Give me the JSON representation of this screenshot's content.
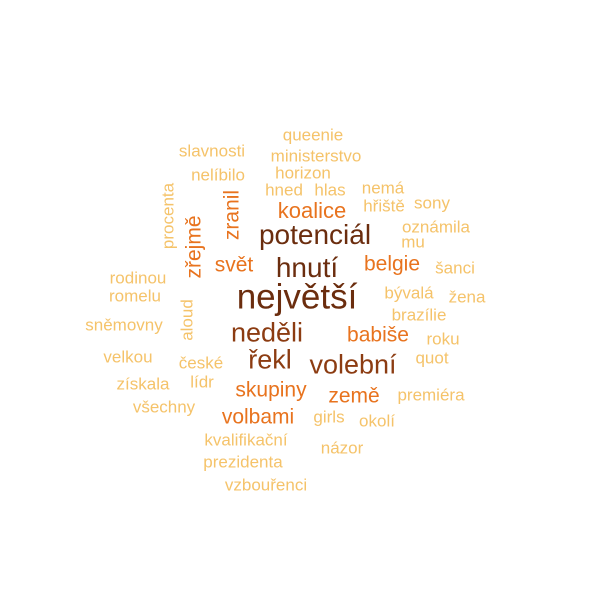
{
  "colors": {
    "dark": "#6b2d0e",
    "brown": "#8c3c12",
    "orange": "#e8731e",
    "light": "#f5c36a"
  },
  "words": [
    {
      "text": "největší",
      "weight": 1.0,
      "tone": "dark"
    },
    {
      "text": "potenciál",
      "weight": 0.85,
      "tone": "dark"
    },
    {
      "text": "hnutí",
      "weight": 0.8,
      "tone": "dark"
    },
    {
      "text": "neděli",
      "weight": 0.75,
      "tone": "brown"
    },
    {
      "text": "řekl",
      "weight": 0.75,
      "tone": "brown"
    },
    {
      "text": "volební",
      "weight": 0.75,
      "tone": "brown"
    },
    {
      "text": "koalice",
      "weight": 0.55,
      "tone": "orange"
    },
    {
      "text": "belgie",
      "weight": 0.5,
      "tone": "orange"
    },
    {
      "text": "svět",
      "weight": 0.5,
      "tone": "orange"
    },
    {
      "text": "zranil",
      "weight": 0.5,
      "tone": "orange"
    },
    {
      "text": "zřejmě",
      "weight": 0.5,
      "tone": "orange"
    },
    {
      "text": "babiše",
      "weight": 0.5,
      "tone": "orange"
    },
    {
      "text": "země",
      "weight": 0.5,
      "tone": "orange"
    },
    {
      "text": "skupiny",
      "weight": 0.5,
      "tone": "orange"
    },
    {
      "text": "volbami",
      "weight": 0.5,
      "tone": "orange"
    },
    {
      "text": "queenie",
      "weight": 0.3,
      "tone": "light"
    },
    {
      "text": "slavnosti",
      "weight": 0.3,
      "tone": "light"
    },
    {
      "text": "ministerstvo",
      "weight": 0.3,
      "tone": "light"
    },
    {
      "text": "nelíbilo",
      "weight": 0.3,
      "tone": "light"
    },
    {
      "text": "horizon",
      "weight": 0.3,
      "tone": "light"
    },
    {
      "text": "hned",
      "weight": 0.3,
      "tone": "light"
    },
    {
      "text": "hlas",
      "weight": 0.3,
      "tone": "light"
    },
    {
      "text": "nemá",
      "weight": 0.3,
      "tone": "light"
    },
    {
      "text": "hřiště",
      "weight": 0.3,
      "tone": "light"
    },
    {
      "text": "sony",
      "weight": 0.3,
      "tone": "light"
    },
    {
      "text": "procenta",
      "weight": 0.3,
      "tone": "light"
    },
    {
      "text": "oznámila",
      "weight": 0.3,
      "tone": "light"
    },
    {
      "text": "mu",
      "weight": 0.3,
      "tone": "light"
    },
    {
      "text": "šanci",
      "weight": 0.3,
      "tone": "light"
    },
    {
      "text": "rodinou",
      "weight": 0.3,
      "tone": "light"
    },
    {
      "text": "romelu",
      "weight": 0.3,
      "tone": "light"
    },
    {
      "text": "bývalá",
      "weight": 0.3,
      "tone": "light"
    },
    {
      "text": "žena",
      "weight": 0.3,
      "tone": "light"
    },
    {
      "text": "brazílie",
      "weight": 0.3,
      "tone": "light"
    },
    {
      "text": "aloud",
      "weight": 0.3,
      "tone": "light"
    },
    {
      "text": "sněmovny",
      "weight": 0.3,
      "tone": "light"
    },
    {
      "text": "roku",
      "weight": 0.3,
      "tone": "light"
    },
    {
      "text": "quot",
      "weight": 0.3,
      "tone": "light"
    },
    {
      "text": "velkou",
      "weight": 0.3,
      "tone": "light"
    },
    {
      "text": "české",
      "weight": 0.3,
      "tone": "light"
    },
    {
      "text": "získala",
      "weight": 0.3,
      "tone": "light"
    },
    {
      "text": "lídr",
      "weight": 0.3,
      "tone": "light"
    },
    {
      "text": "premiéra",
      "weight": 0.3,
      "tone": "light"
    },
    {
      "text": "všechny",
      "weight": 0.3,
      "tone": "light"
    },
    {
      "text": "girls",
      "weight": 0.3,
      "tone": "light"
    },
    {
      "text": "okolí",
      "weight": 0.3,
      "tone": "light"
    },
    {
      "text": "kvalifikační",
      "weight": 0.3,
      "tone": "light"
    },
    {
      "text": "názor",
      "weight": 0.3,
      "tone": "light"
    },
    {
      "text": "prezidenta",
      "weight": 0.3,
      "tone": "light"
    },
    {
      "text": "vzbouřenci",
      "weight": 0.3,
      "tone": "light"
    }
  ]
}
